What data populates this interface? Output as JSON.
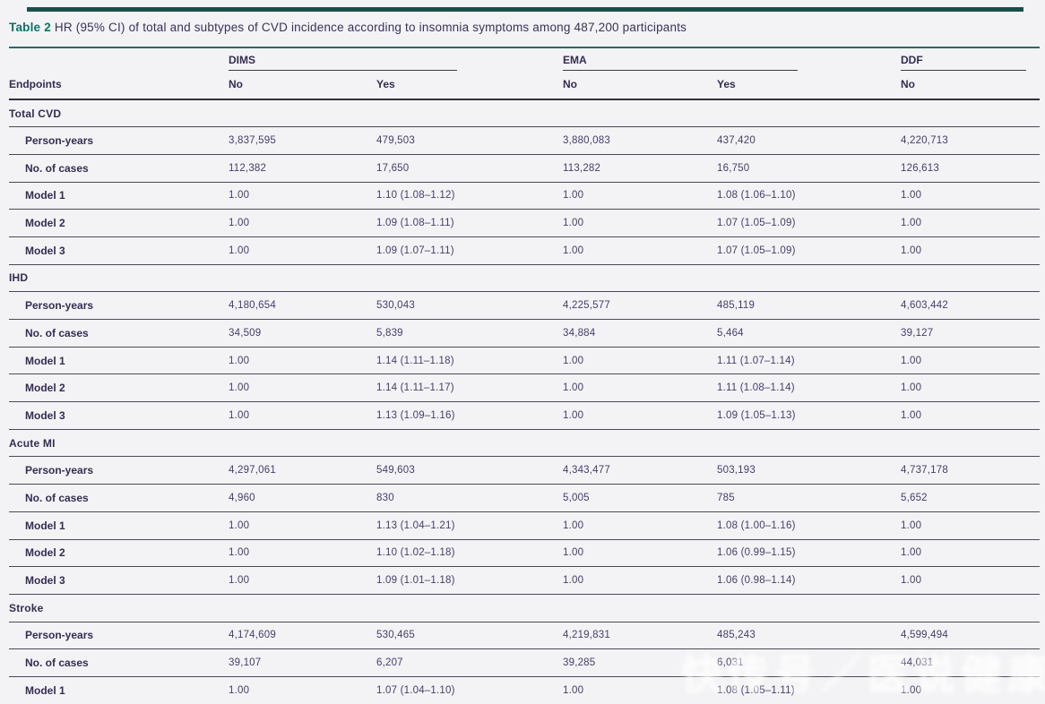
{
  "table": {
    "title_label": "Table 2",
    "title_text": "HR (95% CI) of total and subtypes of CVD incidence according to insomnia symptoms among 487,200 participants",
    "endpoints_header": "Endpoints",
    "groups": [
      {
        "label": "DIMS",
        "sub_no": "No",
        "sub_yes": "Yes"
      },
      {
        "label": "EMA",
        "sub_no": "No",
        "sub_yes": "Yes"
      },
      {
        "label": "DDF",
        "sub_no": "No"
      }
    ],
    "sections": [
      {
        "name": "Total CVD",
        "rows": [
          {
            "label": "Person-years",
            "values": [
              "3,837,595",
              "479,503",
              "3,880,083",
              "437,420",
              "4,220,713"
            ]
          },
          {
            "label": "No. of cases",
            "values": [
              "112,382",
              "17,650",
              "113,282",
              "16,750",
              "126,613"
            ]
          },
          {
            "label": "Model 1",
            "values": [
              "1.00",
              "1.10 (1.08–1.12)",
              "1.00",
              "1.08 (1.06–1.10)",
              "1.00"
            ]
          },
          {
            "label": "Model 2",
            "values": [
              "1.00",
              "1.09 (1.08–1.11)",
              "1.00",
              "1.07 (1.05–1.09)",
              "1.00"
            ]
          },
          {
            "label": "Model 3",
            "values": [
              "1.00",
              "1.09 (1.07–1.11)",
              "1.00",
              "1.07 (1.05–1.09)",
              "1.00"
            ]
          }
        ]
      },
      {
        "name": "IHD",
        "rows": [
          {
            "label": "Person-years",
            "values": [
              "4,180,654",
              "530,043",
              "4,225,577",
              "485,119",
              "4,603,442"
            ]
          },
          {
            "label": "No. of cases",
            "values": [
              "34,509",
              "5,839",
              "34,884",
              "5,464",
              "39,127"
            ]
          },
          {
            "label": "Model 1",
            "values": [
              "1.00",
              "1.14 (1.11–1.18)",
              "1.00",
              "1.11 (1.07–1.14)",
              "1.00"
            ]
          },
          {
            "label": "Model 2",
            "values": [
              "1.00",
              "1.14 (1.11–1.17)",
              "1.00",
              "1.11 (1.08–1.14)",
              "1.00"
            ]
          },
          {
            "label": "Model 3",
            "values": [
              "1.00",
              "1.13 (1.09–1.16)",
              "1.00",
              "1.09 (1.05–1.13)",
              "1.00"
            ]
          }
        ]
      },
      {
        "name": "Acute MI",
        "rows": [
          {
            "label": "Person-years",
            "values": [
              "4,297,061",
              "549,603",
              "4,343,477",
              "503,193",
              "4,737,178"
            ]
          },
          {
            "label": "No. of cases",
            "values": [
              "4,960",
              "830",
              "5,005",
              "785",
              "5,652"
            ]
          },
          {
            "label": "Model 1",
            "values": [
              "1.00",
              "1.13 (1.04–1.21)",
              "1.00",
              "1.08 (1.00–1.16)",
              "1.00"
            ]
          },
          {
            "label": "Model 2",
            "values": [
              "1.00",
              "1.10 (1.02–1.18)",
              "1.00",
              "1.06 (0.99–1.15)",
              "1.00"
            ]
          },
          {
            "label": "Model 3",
            "values": [
              "1.00",
              "1.09 (1.01–1.18)",
              "1.00",
              "1.06 (0.98–1.14)",
              "1.00"
            ]
          }
        ]
      },
      {
        "name": "Stroke",
        "rows": [
          {
            "label": "Person-years",
            "values": [
              "4,174,609",
              "530,465",
              "4,219,831",
              "485,243",
              "4,599,494"
            ]
          },
          {
            "label": "No. of cases",
            "values": [
              "39,107",
              "6,207",
              "39,285",
              "6,031",
              "44,031"
            ]
          },
          {
            "label": "Model 1",
            "values": [
              "1.00",
              "1.07 (1.04–1.10)",
              "1.00",
              "1.08 (1.05–1.11)",
              "1.00"
            ]
          }
        ]
      }
    ]
  },
  "watermark": {
    "text": "快传号／医说健康"
  },
  "colors": {
    "accent_teal": "#18504b",
    "title_teal": "#0e7266",
    "text_purple": "#3e3560",
    "rule_dark": "#4a4a58",
    "background": "#f3f3f5"
  }
}
